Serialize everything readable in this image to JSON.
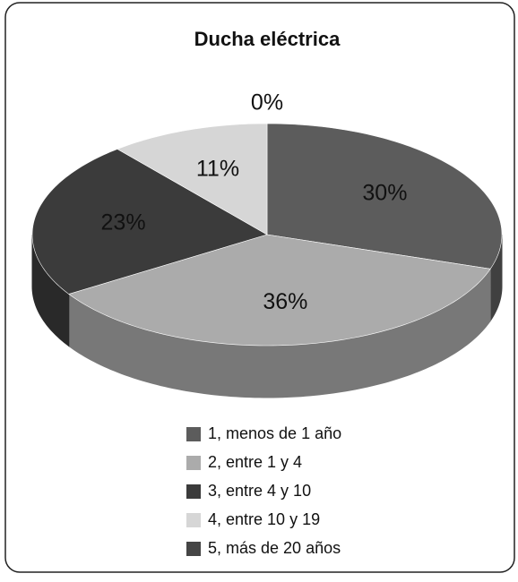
{
  "chart_data": {
    "type": "pie",
    "title": "Ducha eléctrica",
    "categories": [
      "1, menos de 1 año",
      "2, entre 1 y 4",
      "3, entre 4 y 10",
      "4, entre 10 y 19",
      "5, más de 20 años"
    ],
    "values": [
      30,
      36,
      23,
      11,
      0
    ],
    "value_labels": [
      "30%",
      "36%",
      "23%",
      "11%",
      "0%"
    ],
    "colors": [
      "#5c5c5c",
      "#ababab",
      "#3b3b3b",
      "#d6d6d6",
      "#454545"
    ]
  }
}
